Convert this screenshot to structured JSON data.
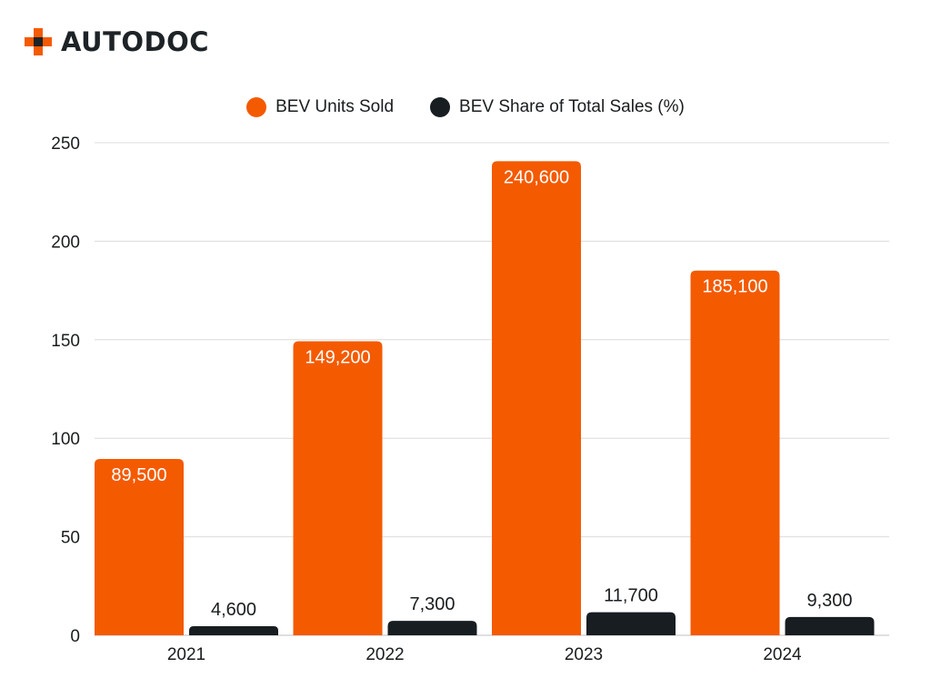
{
  "brand": {
    "name": "AUTODOC",
    "logo_icon": "plus-cross-logo-icon",
    "accent_color": "#f45a00"
  },
  "chart_data": {
    "type": "bar",
    "title": "",
    "xlabel": "",
    "ylabel": "",
    "categories": [
      "2021",
      "2022",
      "2023",
      "2024"
    ],
    "ylim": [
      0,
      250
    ],
    "yticks": [
      0,
      50,
      100,
      150,
      200,
      250
    ],
    "grid": true,
    "legend_position": "top-center",
    "series": [
      {
        "name": "BEV Units Sold",
        "color": "#f45a00",
        "label_color": "#ffffff",
        "values": [
          89.5,
          149.2,
          240.6,
          185.1
        ],
        "labels": [
          "89,500",
          "149,200",
          "240,600",
          "185,100"
        ]
      },
      {
        "name": "BEV Share of Total Sales (%)",
        "color": "#171d20",
        "label_color": "#1a1d1f",
        "values": [
          4.6,
          7.3,
          11.7,
          9.3
        ],
        "labels": [
          "4,600",
          "7,300",
          "11,700",
          "9,300"
        ]
      }
    ]
  }
}
